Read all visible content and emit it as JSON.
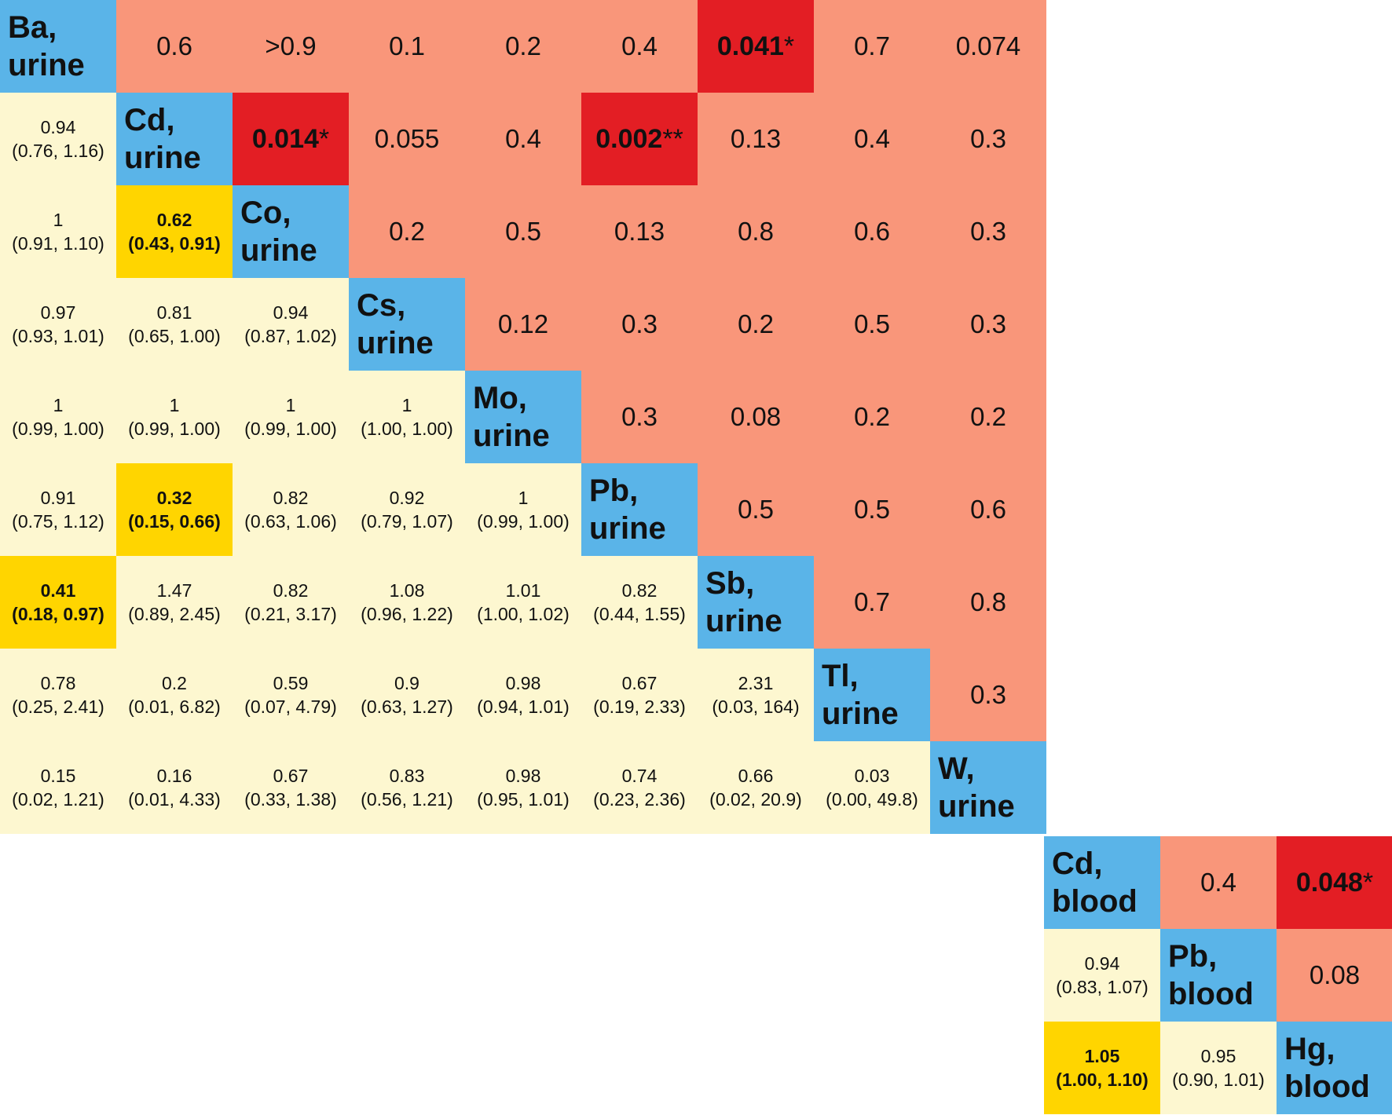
{
  "colors": {
    "diagonal": "#5ab4e8",
    "pvalue_normal": "#f9967a",
    "pvalue_significant": "#e31e24",
    "estimate_normal": "#fdf7d0",
    "estimate_significant": "#ffd500"
  },
  "chart_data": [
    {
      "type": "table",
      "elements": [
        "Ba, urine",
        "Cd, urine",
        "Co, urine",
        "Cs, urine",
        "Mo, urine",
        "Pb, urine",
        "Sb, urine",
        "Tl, urine",
        "W, urine"
      ],
      "element_labels": [
        [
          "Ba,",
          "urine"
        ],
        [
          "Cd,",
          "urine"
        ],
        [
          "Co,",
          "urine"
        ],
        [
          "Cs,",
          "urine"
        ],
        [
          "Mo,",
          "urine"
        ],
        [
          "Pb,",
          "urine"
        ],
        [
          "Sb,",
          "urine"
        ],
        [
          "Tl,",
          "urine"
        ],
        [
          "W,",
          "urine"
        ]
      ],
      "upper_pvalues": [
        {
          "row": 0,
          "col": 1,
          "value": "0.6",
          "sig": false
        },
        {
          "row": 0,
          "col": 2,
          "value": ">0.9",
          "sig": false
        },
        {
          "row": 0,
          "col": 3,
          "value": "0.1",
          "sig": false
        },
        {
          "row": 0,
          "col": 4,
          "value": "0.2",
          "sig": false
        },
        {
          "row": 0,
          "col": 5,
          "value": "0.4",
          "sig": false
        },
        {
          "row": 0,
          "col": 6,
          "value": "0.041",
          "stars": "*",
          "sig": true
        },
        {
          "row": 0,
          "col": 7,
          "value": "0.7",
          "sig": false
        },
        {
          "row": 0,
          "col": 8,
          "value": "0.074",
          "sig": false
        },
        {
          "row": 1,
          "col": 2,
          "value": "0.014",
          "stars": "*",
          "sig": true
        },
        {
          "row": 1,
          "col": 3,
          "value": "0.055",
          "sig": false
        },
        {
          "row": 1,
          "col": 4,
          "value": "0.4",
          "sig": false
        },
        {
          "row": 1,
          "col": 5,
          "value": "0.002",
          "stars": "**",
          "sig": true
        },
        {
          "row": 1,
          "col": 6,
          "value": "0.13",
          "sig": false
        },
        {
          "row": 1,
          "col": 7,
          "value": "0.4",
          "sig": false
        },
        {
          "row": 1,
          "col": 8,
          "value": "0.3",
          "sig": false
        },
        {
          "row": 2,
          "col": 3,
          "value": "0.2",
          "sig": false
        },
        {
          "row": 2,
          "col": 4,
          "value": "0.5",
          "sig": false
        },
        {
          "row": 2,
          "col": 5,
          "value": "0.13",
          "sig": false
        },
        {
          "row": 2,
          "col": 6,
          "value": "0.8",
          "sig": false
        },
        {
          "row": 2,
          "col": 7,
          "value": "0.6",
          "sig": false
        },
        {
          "row": 2,
          "col": 8,
          "value": "0.3",
          "sig": false
        },
        {
          "row": 3,
          "col": 4,
          "value": "0.12",
          "sig": false
        },
        {
          "row": 3,
          "col": 5,
          "value": "0.3",
          "sig": false
        },
        {
          "row": 3,
          "col": 6,
          "value": "0.2",
          "sig": false
        },
        {
          "row": 3,
          "col": 7,
          "value": "0.5",
          "sig": false
        },
        {
          "row": 3,
          "col": 8,
          "value": "0.3",
          "sig": false
        },
        {
          "row": 4,
          "col": 5,
          "value": "0.3",
          "sig": false
        },
        {
          "row": 4,
          "col": 6,
          "value": "0.08",
          "sig": false
        },
        {
          "row": 4,
          "col": 7,
          "value": "0.2",
          "sig": false
        },
        {
          "row": 4,
          "col": 8,
          "value": "0.2",
          "sig": false
        },
        {
          "row": 5,
          "col": 6,
          "value": "0.5",
          "sig": false
        },
        {
          "row": 5,
          "col": 7,
          "value": "0.5",
          "sig": false
        },
        {
          "row": 5,
          "col": 8,
          "value": "0.6",
          "sig": false
        },
        {
          "row": 6,
          "col": 7,
          "value": "0.7",
          "sig": false
        },
        {
          "row": 6,
          "col": 8,
          "value": "0.8",
          "sig": false
        },
        {
          "row": 7,
          "col": 8,
          "value": "0.3",
          "sig": false
        }
      ],
      "lower_estimates": [
        {
          "row": 1,
          "col": 0,
          "estimate": "0.94",
          "ci": "(0.76, 1.16)",
          "sig": false
        },
        {
          "row": 2,
          "col": 0,
          "estimate": "1",
          "ci": "(0.91, 1.10)",
          "sig": false
        },
        {
          "row": 2,
          "col": 1,
          "estimate": "0.62",
          "ci": "(0.43, 0.91)",
          "sig": true
        },
        {
          "row": 3,
          "col": 0,
          "estimate": "0.97",
          "ci": "(0.93, 1.01)",
          "sig": false
        },
        {
          "row": 3,
          "col": 1,
          "estimate": "0.81",
          "ci": "(0.65, 1.00)",
          "sig": false
        },
        {
          "row": 3,
          "col": 2,
          "estimate": "0.94",
          "ci": "(0.87, 1.02)",
          "sig": false
        },
        {
          "row": 4,
          "col": 0,
          "estimate": "1",
          "ci": "(0.99, 1.00)",
          "sig": false
        },
        {
          "row": 4,
          "col": 1,
          "estimate": "1",
          "ci": "(0.99, 1.00)",
          "sig": false
        },
        {
          "row": 4,
          "col": 2,
          "estimate": "1",
          "ci": "(0.99, 1.00)",
          "sig": false
        },
        {
          "row": 4,
          "col": 3,
          "estimate": "1",
          "ci": "(1.00, 1.00)",
          "sig": false
        },
        {
          "row": 5,
          "col": 0,
          "estimate": "0.91",
          "ci": "(0.75, 1.12)",
          "sig": false
        },
        {
          "row": 5,
          "col": 1,
          "estimate": "0.32",
          "ci": "(0.15, 0.66)",
          "sig": true
        },
        {
          "row": 5,
          "col": 2,
          "estimate": "0.82",
          "ci": "(0.63, 1.06)",
          "sig": false
        },
        {
          "row": 5,
          "col": 3,
          "estimate": "0.92",
          "ci": "(0.79, 1.07)",
          "sig": false
        },
        {
          "row": 5,
          "col": 4,
          "estimate": "1",
          "ci": "(0.99, 1.00)",
          "sig": false
        },
        {
          "row": 6,
          "col": 0,
          "estimate": "0.41",
          "ci": "(0.18, 0.97)",
          "sig": true
        },
        {
          "row": 6,
          "col": 1,
          "estimate": "1.47",
          "ci": "(0.89, 2.45)",
          "sig": false
        },
        {
          "row": 6,
          "col": 2,
          "estimate": "0.82",
          "ci": "(0.21, 3.17)",
          "sig": false
        },
        {
          "row": 6,
          "col": 3,
          "estimate": "1.08",
          "ci": "(0.96, 1.22)",
          "sig": false
        },
        {
          "row": 6,
          "col": 4,
          "estimate": "1.01",
          "ci": "(1.00, 1.02)",
          "sig": false
        },
        {
          "row": 6,
          "col": 5,
          "estimate": "0.82",
          "ci": "(0.44, 1.55)",
          "sig": false
        },
        {
          "row": 7,
          "col": 0,
          "estimate": "0.78",
          "ci": "(0.25, 2.41)",
          "sig": false
        },
        {
          "row": 7,
          "col": 1,
          "estimate": "0.2",
          "ci": "(0.01, 6.82)",
          "sig": false
        },
        {
          "row": 7,
          "col": 2,
          "estimate": "0.59",
          "ci": "(0.07, 4.79)",
          "sig": false
        },
        {
          "row": 7,
          "col": 3,
          "estimate": "0.9",
          "ci": "(0.63, 1.27)",
          "sig": false
        },
        {
          "row": 7,
          "col": 4,
          "estimate": "0.98",
          "ci": "(0.94, 1.01)",
          "sig": false
        },
        {
          "row": 7,
          "col": 5,
          "estimate": "0.67",
          "ci": "(0.19, 2.33)",
          "sig": false
        },
        {
          "row": 7,
          "col": 6,
          "estimate": "2.31",
          "ci": "(0.03, 164)",
          "sig": false
        },
        {
          "row": 8,
          "col": 0,
          "estimate": "0.15",
          "ci": "(0.02, 1.21)",
          "sig": false
        },
        {
          "row": 8,
          "col": 1,
          "estimate": "0.16",
          "ci": "(0.01, 4.33)",
          "sig": false
        },
        {
          "row": 8,
          "col": 2,
          "estimate": "0.67",
          "ci": "(0.33, 1.38)",
          "sig": false
        },
        {
          "row": 8,
          "col": 3,
          "estimate": "0.83",
          "ci": "(0.56, 1.21)",
          "sig": false
        },
        {
          "row": 8,
          "col": 4,
          "estimate": "0.98",
          "ci": "(0.95, 1.01)",
          "sig": false
        },
        {
          "row": 8,
          "col": 5,
          "estimate": "0.74",
          "ci": "(0.23, 2.36)",
          "sig": false
        },
        {
          "row": 8,
          "col": 6,
          "estimate": "0.66",
          "ci": "(0.02, 20.9)",
          "sig": false
        },
        {
          "row": 8,
          "col": 7,
          "estimate": "0.03",
          "ci": "(0.00, 49.8)",
          "sig": false
        }
      ]
    },
    {
      "type": "table",
      "elements": [
        "Cd, blood",
        "Pb, blood",
        "Hg, blood"
      ],
      "element_labels": [
        [
          "Cd,",
          "blood"
        ],
        [
          "Pb,",
          "blood"
        ],
        [
          "Hg,",
          "blood"
        ]
      ],
      "upper_pvalues": [
        {
          "row": 0,
          "col": 1,
          "value": "0.4",
          "sig": false
        },
        {
          "row": 0,
          "col": 2,
          "value": "0.048",
          "stars": "*",
          "sig": true
        },
        {
          "row": 1,
          "col": 2,
          "value": "0.08",
          "sig": false
        }
      ],
      "lower_estimates": [
        {
          "row": 1,
          "col": 0,
          "estimate": "0.94",
          "ci": "(0.83, 1.07)",
          "sig": false
        },
        {
          "row": 2,
          "col": 0,
          "estimate": "1.05",
          "ci": "(1.00, 1.10)",
          "sig": true
        },
        {
          "row": 2,
          "col": 1,
          "estimate": "0.95",
          "ci": "(0.90, 1.01)",
          "sig": false
        }
      ]
    }
  ]
}
